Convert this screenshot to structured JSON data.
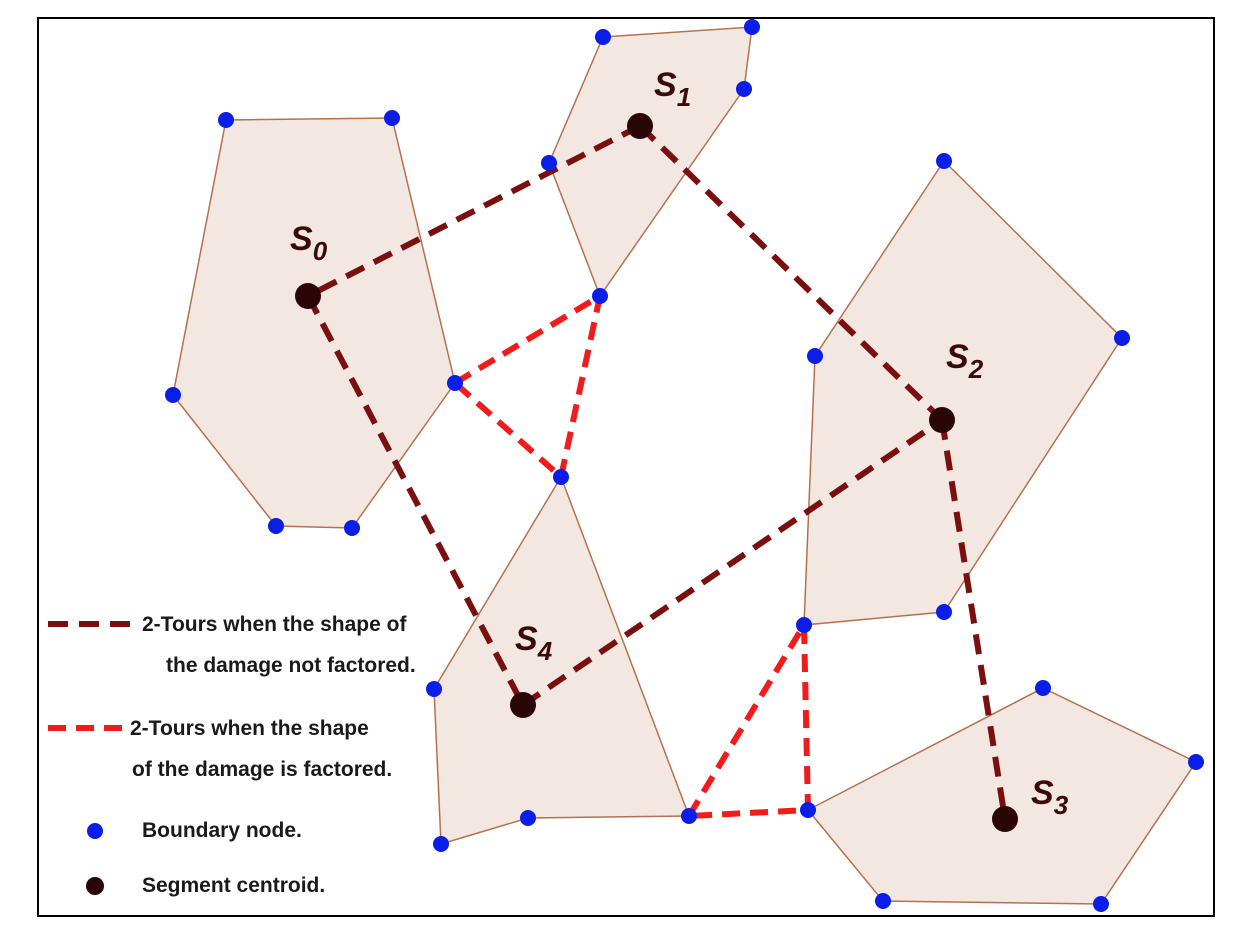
{
  "colors": {
    "segment_fill": "#f3e7e2",
    "segment_stroke": "#b5714f",
    "boundary_node": "#0a1ee8",
    "centroid": "#2a0606",
    "tour_not_factored": "#7a0f0f",
    "tour_factored": "#f21b1b",
    "frame": "#000000"
  },
  "centroids": [
    {
      "id": "s0",
      "label": "S",
      "sub": "0"
    },
    {
      "id": "s1",
      "label": "S",
      "sub": "1"
    },
    {
      "id": "s2",
      "label": "S",
      "sub": "2"
    },
    {
      "id": "s3",
      "label": "S",
      "sub": "3"
    },
    {
      "id": "s4",
      "label": "S",
      "sub": "4"
    }
  ],
  "legend": {
    "not_factored_line1": "2-Tours when the shape of",
    "not_factored_line2": "the damage not factored.",
    "factored_line1": "2-Tours when the shape",
    "factored_line2": "of the damage is factored.",
    "boundary_node": "Boundary node.",
    "segment_centroid": "Segment centroid."
  },
  "tours": {
    "not_factored": [
      "s1-s0",
      "s0-s4",
      "s4-s2",
      "s1-s2",
      "s2-s3"
    ],
    "factored": [
      "quad-left",
      "triangle-top",
      "triangle-bottom"
    ]
  }
}
